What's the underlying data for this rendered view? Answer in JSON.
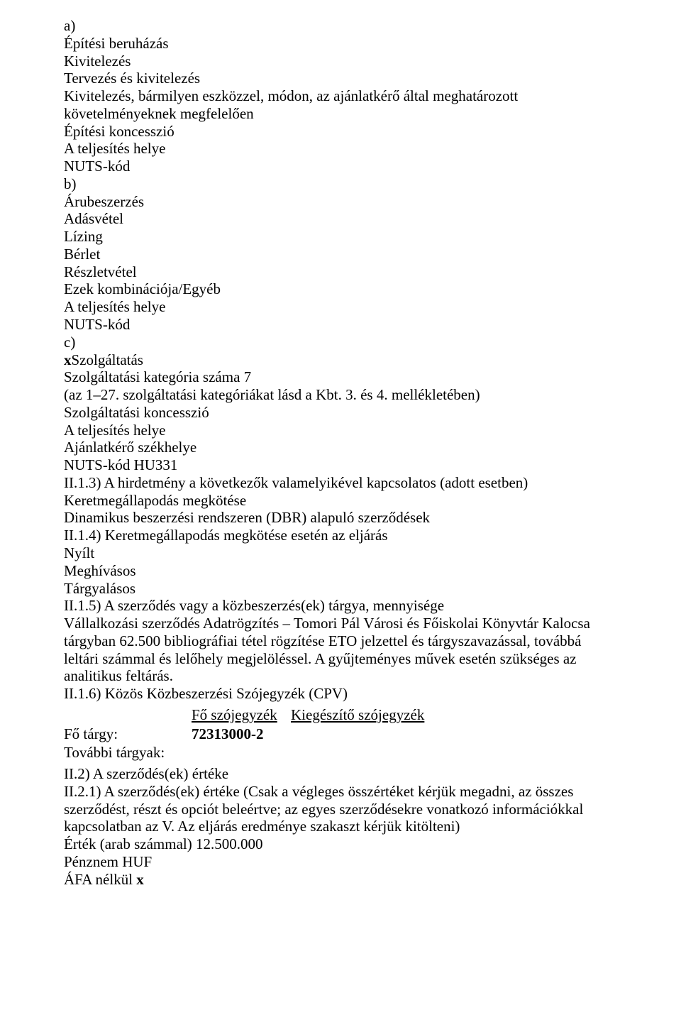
{
  "section_a": {
    "marker": "a)",
    "l1": "Építési beruházás",
    "l2": "Kivitelezés",
    "l3": "Tervezés és kivitelezés",
    "l4": "Kivitelezés, bármilyen eszközzel, módon, az ajánlatkérő által meghatározott követelményeknek megfelelően",
    "l5": "Építési koncesszió",
    "l6": "A teljesítés helye",
    "l7": "NUTS-kód"
  },
  "section_b": {
    "marker": "b)",
    "l1": "Árubeszerzés",
    "l2": "Adásvétel",
    "l3": "Lízing",
    "l4": "Bérlet",
    "l5": "Részletvétel",
    "l6": "Ezek kombinációja/Egyéb",
    "l7": "A teljesítés helye",
    "l8": "NUTS-kód"
  },
  "section_c": {
    "marker": "c)",
    "x": "x",
    "l1": "Szolgáltatás",
    "l2": "Szolgáltatási kategória száma 7",
    "l3": "(az 1–27. szolgáltatási kategóriákat lásd a Kbt. 3. és 4. mellékletében)",
    "l4": "Szolgáltatási koncesszió",
    "l5": "A teljesítés helye",
    "l6": "Ajánlatkérő székhelye",
    "l7": "NUTS-kód HU331"
  },
  "ii13": {
    "title": "II.1.3) A hirdetmény a következők valamelyikével kapcsolatos (adott esetben)",
    "l1": "Keretmegállapodás megkötése",
    "l2": "Dinamikus beszerzési rendszeren (DBR) alapuló szerződések"
  },
  "ii14": {
    "title": "II.1.4) Keretmegállapodás megkötése esetén az eljárás",
    "l1": "Nyílt",
    "l2": "Meghívásos",
    "l3": "Tárgyalásos"
  },
  "ii15": {
    "title": "II.1.5) A szerződés vagy a közbeszerzés(ek) tárgya, mennyisége",
    "body": "Vállalkozási szerződés Adatrögzítés – Tomori Pál Városi és Főiskolai Könyvtár Kalocsa tárgyban 62.500 bibliográfiai tétel rögzítése ETO jelzettel és tárgyszavazással, továbbá leltári számmal és lelőhely megjelöléssel. A gyűjteményes művek esetén szükséges az analitikus feltárás."
  },
  "ii16": {
    "title": "II.1.6) Közös Közbeszerzési Szójegyzék (CPV)",
    "col1": "Fő szójegyzék",
    "col2": "Kiegészítő szójegyzék",
    "row1_label": "Fő tárgy:",
    "row1_val": "72313000-2",
    "row2_label": "További tárgyak:"
  },
  "ii2": {
    "title": "II.2) A szerződés(ek) értéke"
  },
  "ii21": {
    "title": "II.2.1) A szerződés(ek) értéke (Csak a végleges összértéket kérjük megadni, az összes szerződést, részt és opciót beleértve; az egyes szerződésekre vonatkozó információkkal kapcsolatban az V. Az eljárás eredménye szakaszt kérjük kitölteni)",
    "l1": "Érték (arab számmal) 12.500.000",
    "l2": "Pénznem HUF",
    "l3_pre": "ÁFA nélkül ",
    "l3_x": "x"
  }
}
